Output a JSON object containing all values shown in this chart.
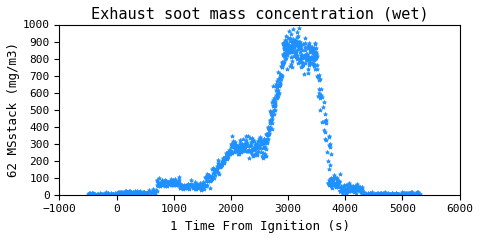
{
  "title": "Exhaust soot mass concentration (wet)",
  "xlabel": "1 Time From Ignition (s)",
  "ylabel": "62 MSstack (mg/m3)",
  "xlim": [
    -1000,
    6000
  ],
  "ylim": [
    0,
    1000
  ],
  "xticks": [
    -1000,
    0,
    1000,
    2000,
    3000,
    4000,
    5000,
    6000
  ],
  "yticks": [
    0,
    100,
    200,
    300,
    400,
    500,
    600,
    700,
    800,
    900,
    1000
  ],
  "marker": "*",
  "color": "#1E90FF",
  "markersize": 3,
  "background_color": "#ffffff",
  "title_fontsize": 11,
  "label_fontsize": 9,
  "tick_fontsize": 8,
  "font_family": "monospace"
}
